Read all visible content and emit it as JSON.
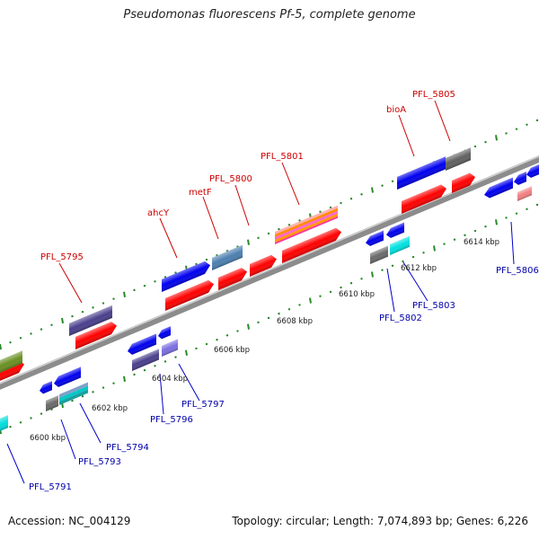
{
  "title": "Pseudomonas fluorescens Pf-5, complete genome",
  "footer": {
    "accession": "Accession: NC_004129",
    "topology": "Topology: circular; Length: 7,074,893 bp; Genes: 6,226"
  },
  "colors": {
    "backbone": "#8c8c8c",
    "forward_label": "#cc0000",
    "reverse_label": "#0000aa",
    "tick": "#2a8a2a"
  },
  "scale_labels": [
    "6600 kbp",
    "6602 kbp",
    "6604 kbp",
    "6606 kbp",
    "6608 kbp",
    "6610 kbp",
    "6612 kbp",
    "6614 kbp"
  ],
  "forward_labels": [
    "PFL_5795",
    "ahcY",
    "metF",
    "PFL_5800",
    "PFL_5801",
    "bioA",
    "PFL_5805"
  ],
  "reverse_labels": [
    "PFL_5791",
    "PFL_5793",
    "PFL_5794",
    "PFL_5796",
    "PFL_5797",
    "PFL_5802",
    "PFL_5803",
    "PFL_5806"
  ]
}
